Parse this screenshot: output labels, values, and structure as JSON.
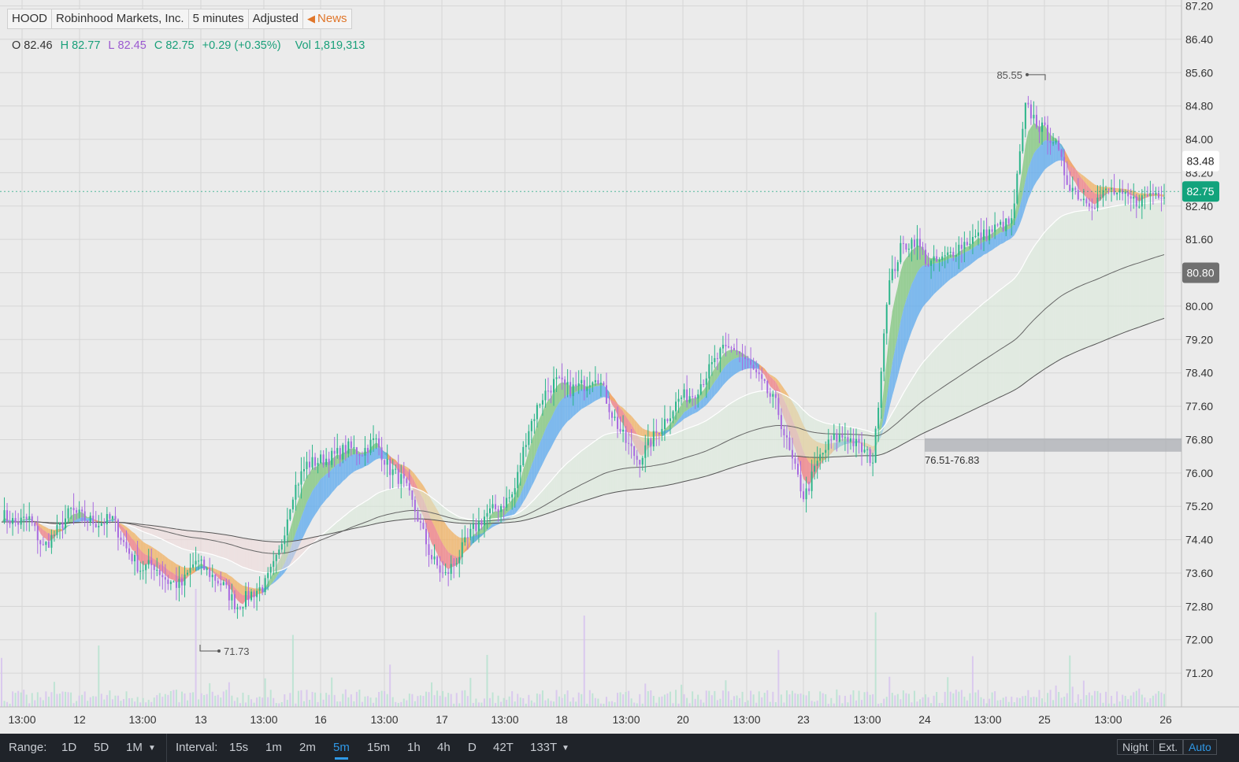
{
  "header": {
    "symbol": "HOOD",
    "company": "Robinhood Markets, Inc.",
    "interval": "5 minutes",
    "adjusted": "Adjusted",
    "news": "News"
  },
  "ohlc": {
    "o_label": "O",
    "o": "82.46",
    "h_label": "H",
    "h": "82.77",
    "l_label": "L",
    "l": "82.45",
    "c_label": "C",
    "c": "82.75",
    "change": "+0.29 (+0.35%)",
    "vol_label": "Vol",
    "vol": "1,819,313"
  },
  "colors": {
    "background": "#ebebeb",
    "grid": "#d6d6d6",
    "up": "#2bb58a",
    "down": "#a86ae0",
    "ribbon_up_green": "#7cc47a",
    "ribbon_up_blue": "#5aa8ee",
    "ribbon_down_red": "#ef7b80",
    "ribbon_down_orange": "#f0b060",
    "last_price": "#12a37c",
    "label_gray": "#707070"
  },
  "chart_data": {
    "type": "candlestick",
    "ylim": [
      70.4,
      87.2
    ],
    "y_ticks": [
      "87.20",
      "86.40",
      "85.60",
      "84.80",
      "84.00",
      "83.20",
      "82.40",
      "81.60",
      "80.80",
      "80.00",
      "79.20",
      "78.40",
      "77.60",
      "76.80",
      "76.00",
      "75.20",
      "74.40",
      "73.60",
      "72.80",
      "72.00",
      "71.20"
    ],
    "x_ticks": [
      "13:00",
      "12",
      "13:00",
      "13",
      "13:00",
      "16",
      "13:00",
      "17",
      "13:00",
      "18",
      "13:00",
      "20",
      "13:00",
      "23",
      "13:00",
      "24",
      "13:00",
      "25",
      "13:00",
      "26"
    ],
    "grid": true,
    "close_path": [
      [
        0,
        75.0
      ],
      [
        2,
        74.8
      ],
      [
        4,
        74.9
      ],
      [
        6,
        74.2
      ],
      [
        8,
        74.6
      ],
      [
        10,
        75.1
      ],
      [
        12,
        74.9
      ],
      [
        14,
        74.8
      ],
      [
        16,
        74.9
      ],
      [
        18,
        74.2
      ],
      [
        20,
        73.7
      ],
      [
        22,
        73.8
      ],
      [
        24,
        73.4
      ],
      [
        26,
        73.3
      ],
      [
        28,
        73.9
      ],
      [
        30,
        73.6
      ],
      [
        32,
        73.3
      ],
      [
        34,
        72.8
      ],
      [
        36,
        73.1
      ],
      [
        38,
        73.3
      ],
      [
        40,
        74.0
      ],
      [
        42,
        75.5
      ],
      [
        44,
        76.2
      ],
      [
        46,
        76.3
      ],
      [
        48,
        76.4
      ],
      [
        50,
        76.6
      ],
      [
        52,
        76.5
      ],
      [
        54,
        76.8
      ],
      [
        56,
        76.1
      ],
      [
        58,
        75.8
      ],
      [
        60,
        75.0
      ],
      [
        62,
        74.0
      ],
      [
        64,
        73.5
      ],
      [
        66,
        74.0
      ],
      [
        68,
        74.6
      ],
      [
        70,
        75.0
      ],
      [
        72,
        75.2
      ],
      [
        74,
        75.5
      ],
      [
        76,
        77.0
      ],
      [
        78,
        77.8
      ],
      [
        80,
        78.2
      ],
      [
        82,
        78.0
      ],
      [
        84,
        78.1
      ],
      [
        86,
        78.4
      ],
      [
        88,
        77.5
      ],
      [
        90,
        76.8
      ],
      [
        92,
        76.3
      ],
      [
        94,
        76.8
      ],
      [
        96,
        77.3
      ],
      [
        98,
        77.8
      ],
      [
        100,
        77.9
      ],
      [
        102,
        78.4
      ],
      [
        104,
        78.9
      ],
      [
        106,
        79.0
      ],
      [
        108,
        78.6
      ],
      [
        110,
        78.1
      ],
      [
        112,
        77.6
      ],
      [
        114,
        76.4
      ],
      [
        116,
        75.4
      ],
      [
        118,
        76.3
      ],
      [
        120,
        76.8
      ],
      [
        122,
        76.9
      ],
      [
        124,
        76.6
      ],
      [
        126,
        76.3
      ],
      [
        128,
        80.4
      ],
      [
        130,
        81.4
      ],
      [
        132,
        81.6
      ],
      [
        134,
        81.0
      ],
      [
        136,
        81.1
      ],
      [
        138,
        81.4
      ],
      [
        140,
        81.6
      ],
      [
        142,
        81.7
      ],
      [
        144,
        81.9
      ],
      [
        146,
        82.0
      ],
      [
        148,
        84.8
      ],
      [
        150,
        84.3
      ],
      [
        152,
        84.0
      ],
      [
        154,
        83.0
      ],
      [
        156,
        82.6
      ],
      [
        158,
        82.5
      ],
      [
        160,
        82.8
      ],
      [
        162,
        82.6
      ],
      [
        164,
        82.5
      ],
      [
        166,
        82.7
      ],
      [
        168,
        82.75
      ]
    ],
    "session_markers": [
      "12",
      "13",
      "16",
      "17",
      "18",
      "20",
      "23",
      "24",
      "25",
      "26"
    ],
    "annotations": {
      "high": "85.55",
      "low": "71.73",
      "zone": "76.51-76.83",
      "zone_range": [
        76.51,
        76.83
      ]
    },
    "price_labels": {
      "current": "82.75",
      "level_a": "83.48",
      "level_b": "80.80"
    }
  },
  "toolbar": {
    "range_label": "Range:",
    "ranges": [
      "1D",
      "5D",
      "1M"
    ],
    "interval_label": "Interval:",
    "intervals": [
      "15s",
      "1m",
      "2m",
      "5m",
      "15m",
      "1h",
      "4h",
      "D",
      "42T",
      "133T"
    ],
    "selected_interval": "5m",
    "night": "Night",
    "ext": "Ext.",
    "auto": "Auto"
  }
}
